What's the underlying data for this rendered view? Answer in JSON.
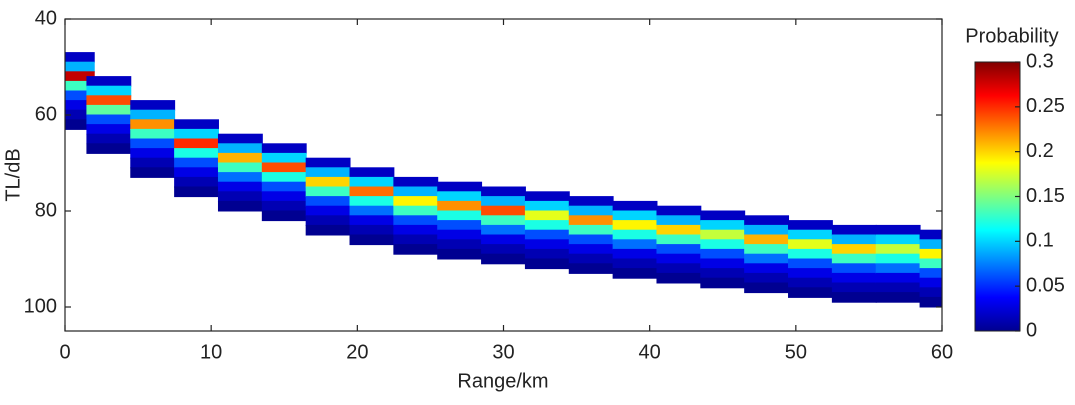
{
  "chart_data": {
    "type": "scatter",
    "xlabel": "Range/km",
    "ylabel": "TL/dB",
    "colorbar_label": "Probability",
    "xlim": [
      0,
      60
    ],
    "xticks": [
      0,
      10,
      20,
      30,
      40,
      50,
      60
    ],
    "ylim": [
      40,
      105
    ],
    "yticks": [
      40,
      60,
      80,
      100
    ],
    "y_inverted": true,
    "colormap": "jet",
    "clim": [
      0,
      0.3
    ],
    "cticks": [
      0,
      0.05,
      0.1,
      0.15,
      0.2,
      0.25,
      0.3
    ],
    "x": [
      0.5,
      0.5,
      0.5,
      0.5,
      0.5,
      0.5,
      0.5,
      0.5,
      3,
      3,
      3,
      3,
      3,
      3,
      3,
      3,
      6,
      6,
      6,
      6,
      6,
      6,
      6,
      6,
      9,
      9,
      9,
      9,
      9,
      9,
      9,
      9,
      12,
      12,
      12,
      12,
      12,
      12,
      12,
      12,
      15,
      15,
      15,
      15,
      15,
      15,
      15,
      15,
      18,
      18,
      18,
      18,
      18,
      18,
      18,
      18,
      21,
      21,
      21,
      21,
      21,
      21,
      21,
      21,
      24,
      24,
      24,
      24,
      24,
      24,
      24,
      24,
      27,
      27,
      27,
      27,
      27,
      27,
      27,
      27,
      30,
      30,
      30,
      30,
      30,
      30,
      30,
      30,
      33,
      33,
      33,
      33,
      33,
      33,
      33,
      33,
      36,
      36,
      36,
      36,
      36,
      36,
      36,
      36,
      39,
      39,
      39,
      39,
      39,
      39,
      39,
      39,
      42,
      42,
      42,
      42,
      42,
      42,
      42,
      42,
      45,
      45,
      45,
      45,
      45,
      45,
      45,
      45,
      48,
      48,
      48,
      48,
      48,
      48,
      48,
      48,
      51,
      51,
      51,
      51,
      51,
      51,
      51,
      51,
      54,
      54,
      54,
      54,
      54,
      54,
      54,
      54,
      57,
      57,
      57,
      57,
      57,
      57,
      57,
      57,
      60,
      60,
      60,
      60,
      60,
      60,
      60,
      60
    ],
    "y": [
      48,
      50,
      52,
      54,
      56,
      58,
      60,
      62,
      53,
      55,
      57,
      59,
      61,
      63,
      65,
      67,
      58,
      60,
      62,
      64,
      66,
      68,
      70,
      72,
      62,
      64,
      66,
      68,
      70,
      72,
      74,
      76,
      65,
      67,
      69,
      71,
      73,
      75,
      77,
      79,
      67,
      69,
      71,
      73,
      75,
      77,
      79,
      81,
      70,
      72,
      74,
      76,
      78,
      80,
      82,
      84,
      72,
      74,
      76,
      78,
      80,
      82,
      84,
      86,
      74,
      76,
      78,
      80,
      82,
      84,
      86,
      88,
      75,
      77,
      79,
      81,
      83,
      85,
      87,
      89,
      76,
      78,
      80,
      82,
      84,
      86,
      88,
      90,
      77,
      79,
      81,
      83,
      85,
      87,
      89,
      91,
      78,
      80,
      82,
      84,
      86,
      88,
      90,
      92,
      79,
      81,
      83,
      85,
      87,
      89,
      91,
      93,
      80,
      82,
      84,
      86,
      88,
      90,
      92,
      94,
      81,
      83,
      85,
      87,
      89,
      91,
      93,
      95,
      82,
      84,
      86,
      88,
      90,
      92,
      94,
      96,
      83,
      85,
      87,
      89,
      91,
      93,
      95,
      97,
      84,
      86,
      88,
      90,
      92,
      94,
      96,
      98,
      84,
      86,
      88,
      90,
      92,
      94,
      96,
      98,
      85,
      87,
      89,
      91,
      93,
      95,
      97,
      99
    ],
    "values": [
      0.02,
      0.09,
      0.28,
      0.13,
      0.06,
      0.03,
      0.015,
      0.005,
      0.02,
      0.1,
      0.24,
      0.14,
      0.06,
      0.03,
      0.015,
      0.005,
      0.02,
      0.09,
      0.22,
      0.13,
      0.06,
      0.03,
      0.015,
      0.005,
      0.02,
      0.1,
      0.25,
      0.12,
      0.06,
      0.03,
      0.015,
      0.005,
      0.02,
      0.09,
      0.21,
      0.13,
      0.07,
      0.03,
      0.015,
      0.005,
      0.02,
      0.1,
      0.24,
      0.12,
      0.06,
      0.03,
      0.015,
      0.005,
      0.02,
      0.09,
      0.2,
      0.13,
      0.06,
      0.03,
      0.015,
      0.005,
      0.02,
      0.1,
      0.23,
      0.12,
      0.07,
      0.03,
      0.015,
      0.005,
      0.02,
      0.09,
      0.19,
      0.13,
      0.06,
      0.03,
      0.015,
      0.005,
      0.02,
      0.1,
      0.22,
      0.12,
      0.06,
      0.03,
      0.015,
      0.005,
      0.02,
      0.09,
      0.24,
      0.13,
      0.07,
      0.03,
      0.015,
      0.005,
      0.02,
      0.1,
      0.18,
      0.12,
      0.06,
      0.03,
      0.015,
      0.005,
      0.02,
      0.09,
      0.22,
      0.13,
      0.06,
      0.03,
      0.015,
      0.005,
      0.02,
      0.1,
      0.19,
      0.12,
      0.07,
      0.03,
      0.015,
      0.005,
      0.02,
      0.09,
      0.2,
      0.13,
      0.06,
      0.03,
      0.015,
      0.005,
      0.02,
      0.1,
      0.17,
      0.12,
      0.06,
      0.03,
      0.015,
      0.005,
      0.02,
      0.09,
      0.21,
      0.13,
      0.07,
      0.03,
      0.015,
      0.005,
      0.02,
      0.1,
      0.18,
      0.12,
      0.06,
      0.03,
      0.015,
      0.005,
      0.02,
      0.09,
      0.2,
      0.13,
      0.06,
      0.03,
      0.015,
      0.005,
      0.02,
      0.1,
      0.17,
      0.12,
      0.07,
      0.03,
      0.015,
      0.005,
      0.02,
      0.09,
      0.19,
      0.13,
      0.06,
      0.03,
      0.015,
      0.005
    ]
  }
}
